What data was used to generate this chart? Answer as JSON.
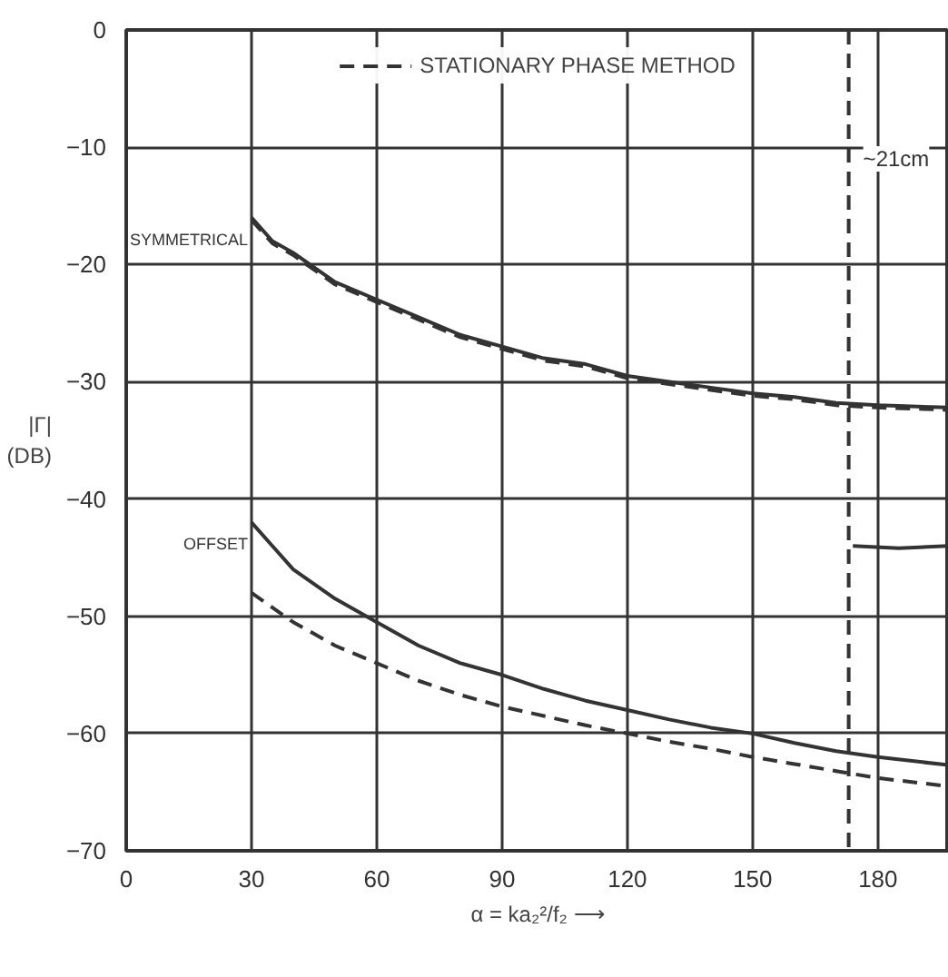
{
  "chart_data": {
    "type": "line",
    "xlabel": "α = ka₂²/f₂ ⟶",
    "ylabel": "|Γ|\n(DB)",
    "xlim": [
      0,
      197
    ],
    "ylim": [
      -70,
      0
    ],
    "xticks": [
      0,
      30,
      60,
      90,
      120,
      150,
      180
    ],
    "yticks": [
      0,
      -10,
      -20,
      -30,
      -40,
      -50,
      -60,
      -70
    ],
    "grid": true,
    "legend": "top",
    "series": [
      {
        "name": "SYMMETRICAL",
        "color": "#333333",
        "line_style": "solid",
        "x": [
          30,
          35,
          40,
          50,
          60,
          70,
          80,
          90,
          100,
          110,
          120,
          130,
          140,
          150,
          160,
          170,
          180,
          197
        ],
        "values": [
          -16,
          -18,
          -19,
          -21.5,
          -23,
          -24.5,
          -26,
          -27,
          -28,
          -28.5,
          -29.5,
          -30,
          -30.5,
          -31,
          -31.3,
          -31.8,
          -32,
          -32.2
        ]
      },
      {
        "name": "STATIONARY PHASE METHOD",
        "color": "#333333",
        "line_style": "dashed",
        "x": [
          30,
          35,
          40,
          50,
          60,
          70,
          80,
          90,
          100,
          110,
          120,
          130,
          140,
          150,
          160,
          170,
          180,
          197
        ],
        "values": [
          -16.2,
          -18.2,
          -19.2,
          -21.7,
          -23.2,
          -24.7,
          -26.2,
          -27.2,
          -28.2,
          -28.7,
          -29.7,
          -30.2,
          -30.7,
          -31.2,
          -31.5,
          -32,
          -32.2,
          -32.4
        ]
      },
      {
        "name": "OFFSET",
        "color": "#333333",
        "line_style": "solid",
        "x": [
          30,
          35,
          40,
          50,
          60,
          70,
          80,
          90,
          100,
          110,
          120,
          130,
          140,
          150,
          160,
          170,
          180,
          197
        ],
        "values": [
          -42,
          -44,
          -46,
          -48.5,
          -50.5,
          -52.5,
          -54,
          -55,
          -56.2,
          -57.2,
          -58,
          -58.8,
          -59.5,
          -60,
          -60.8,
          -61.5,
          -62,
          -62.7
        ]
      },
      {
        "color": "#333333",
        "line_style": "dashed",
        "x": [
          30,
          40,
          50,
          60,
          70,
          80,
          90,
          100,
          110,
          120,
          130,
          140,
          150,
          160,
          170,
          180,
          197
        ],
        "values": [
          -48,
          -50.5,
          -52.5,
          -54,
          -55.5,
          -56.7,
          -57.7,
          -58.5,
          -59.3,
          -60,
          -60.7,
          -61.3,
          -62,
          -62.6,
          -63.2,
          -63.8,
          -64.5
        ]
      },
      {
        "color": "#333333",
        "line_style": "solid",
        "x": [
          174,
          185,
          197
        ],
        "values": [
          -44,
          -44.2,
          -44
        ]
      }
    ],
    "ref_lines": [
      {
        "axis": "x",
        "value": 173,
        "line_style": "dashed",
        "color": "#333333"
      }
    ],
    "annotations": [
      {
        "text": "~21cm",
        "x": 173,
        "y": -11
      }
    ]
  }
}
